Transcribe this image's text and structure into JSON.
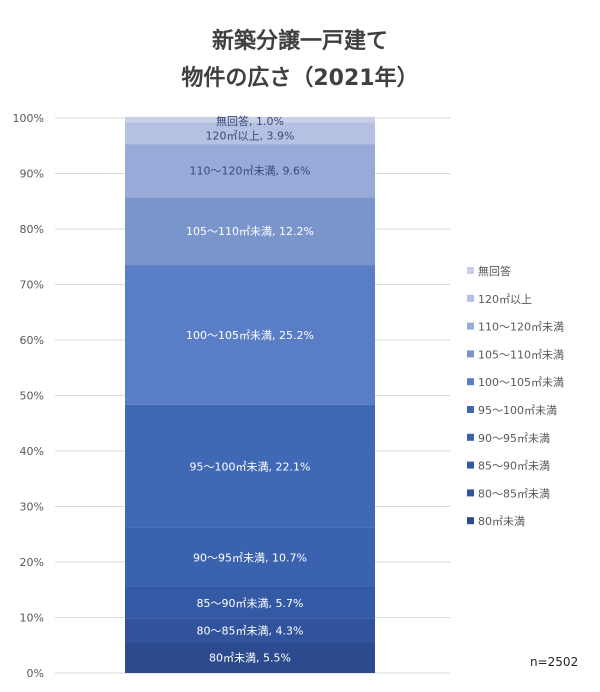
{
  "chart_data": {
    "type": "bar",
    "stacked": true,
    "title_lines": [
      "新築分譲一戸建て",
      "物件の広さ（2021年）"
    ],
    "categories": [
      ""
    ],
    "series": [
      {
        "name": "80㎡未満",
        "value": 5.5,
        "label": "80㎡未満, 5.5%",
        "color": "#2c4b8e"
      },
      {
        "name": "80～85㎡未満",
        "value": 4.3,
        "label": "80～85㎡未満, 4.3%",
        "color": "#31539b"
      },
      {
        "name": "85～90㎡未満",
        "value": 5.7,
        "label": "85～90㎡未満, 5.7%",
        "color": "#355aa5"
      },
      {
        "name": "90～95㎡未満",
        "value": 10.7,
        "label": "90～95㎡未満, 10.7%",
        "color": "#3a62ae"
      },
      {
        "name": "95～100㎡未満",
        "value": 22.1,
        "label": "95～100㎡未満, 22.1%",
        "color": "#3f68b5"
      },
      {
        "name": "100～105㎡未満",
        "value": 25.2,
        "label": "100～105㎡未満, 25.2%",
        "color": "#5a7ec5"
      },
      {
        "name": "105～110㎡未満",
        "value": 12.2,
        "label": "105～110㎡未満, 12.2%",
        "color": "#7a94cc"
      },
      {
        "name": "110～120㎡未満",
        "value": 9.6,
        "label": "110～120㎡未満, 9.6%",
        "color": "#98aad8"
      },
      {
        "name": "120㎡以上",
        "value": 3.9,
        "label": "120㎡以上, 3.9%",
        "color": "#b5c0e2"
      },
      {
        "name": "無回答",
        "value": 1.0,
        "label": "無回答, 1.0%",
        "color": "#c9d0e7"
      }
    ],
    "yticks": [
      "0%",
      "10%",
      "20%",
      "30%",
      "40%",
      "50%",
      "60%",
      "70%",
      "80%",
      "90%",
      "100%"
    ],
    "ylim": [
      0,
      100
    ],
    "legend": "right",
    "grid": true,
    "annotation": "n=2502"
  }
}
